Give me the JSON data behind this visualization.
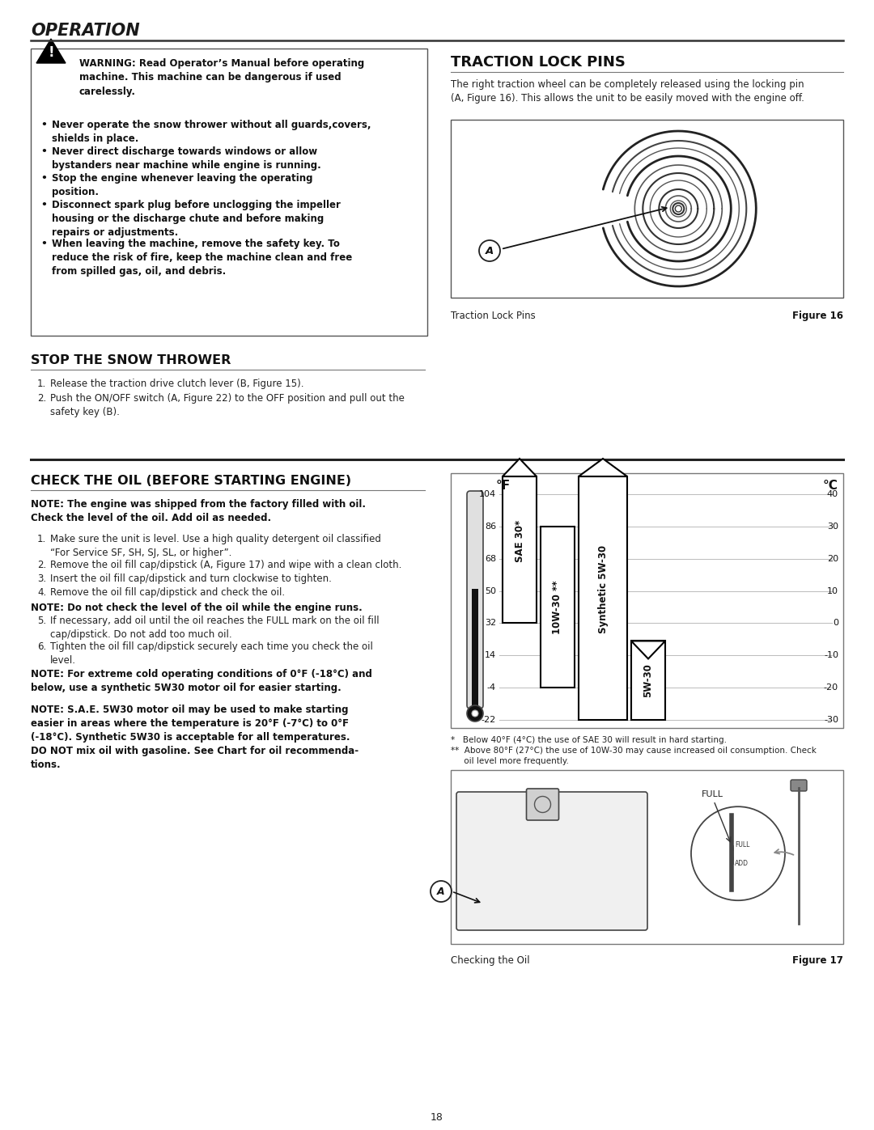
{
  "page_bg": "#ffffff",
  "title": "OPERATION",
  "title_color": "#1a1a1a",
  "separator_color": "#333333",
  "warning_text": "WARNING: Read Operator’s Manual before operating\nmachine. This machine can be dangerous if used\ncarelessly.",
  "bullet_items": [
    "Never operate the snow thrower without all guards,covers,\nshields in place.",
    "Never direct discharge towards windows or allow\nbystanders near machine while engine is running.",
    "Stop the engine whenever leaving the operating\nposition.",
    "Disconnect spark plug before unclogging the impeller\nhousing or the discharge chute and before making\nrepairs or adjustments.",
    "When leaving the machine, remove the safety key. To\nreduce the risk of fire, keep the machine clean and free\nfrom spilled gas, oil, and debris."
  ],
  "stop_title": "STOP THE SNOW THROWER",
  "stop_items": [
    "Release the traction drive clutch lever (B, Figure 15).",
    "Push the ON/OFF switch (A, Figure 22) to the OFF position and pull out the\nsafety key (B)."
  ],
  "traction_title": "TRACTION LOCK PINS",
  "traction_text": "The right traction wheel can be completely released using the locking pin\n(A, Figure 16). This allows the unit to be easily moved with the engine off.",
  "traction_fig_caption": "Traction Lock Pins",
  "traction_fig_label": "Figure 16",
  "check_title": "CHECK THE OIL (BEFORE STARTING ENGINE)",
  "check_note1": "NOTE: The engine was shipped from the factory filled with oil.\nCheck the level of the oil. Add oil as needed.",
  "check_items": [
    "Make sure the unit is level. Use a high quality detergent oil classified\n“For Service SF, SH, SJ, SL, or higher”.",
    "Remove the oil fill cap/dipstick (A, Figure 17) and wipe with a clean cloth.",
    "Insert the oil fill cap/dipstick and turn clockwise to tighten.",
    "Remove the oil fill cap/dipstick and check the oil."
  ],
  "check_note2": "NOTE: Do not check the level of the oil while the engine runs.",
  "check_item5": "If necessary, add oil until the oil reaches the FULL mark on the oil fill\ncap/dipstick. Do not add too much oil.",
  "check_item6": "Tighten the oil fill cap/dipstick securely each time you check the oil\nlevel.",
  "check_note3": "NOTE: For extreme cold operating conditions of 0°F (-18°C) and\nbelow, use a synthetic 5W30 motor oil for easier starting.",
  "check_note4": "NOTE: S.A.E. 5W30 motor oil may be used to make starting\neasier in areas where the temperature is 20°F (-7°C) to 0°F\n(-18°C). Synthetic 5W30 is acceptable for all temperatures.\nDO NOT mix oil with gasoline. See Chart for oil recommenda-\ntions.",
  "oil_fig_caption": "Checking the Oil",
  "oil_fig_label": "Figure 17",
  "page_number": "18",
  "temps_f": [
    104,
    86,
    68,
    50,
    32,
    14,
    -4,
    -22
  ],
  "temps_c": [
    40,
    30,
    20,
    10,
    0,
    -10,
    -20,
    -30
  ]
}
